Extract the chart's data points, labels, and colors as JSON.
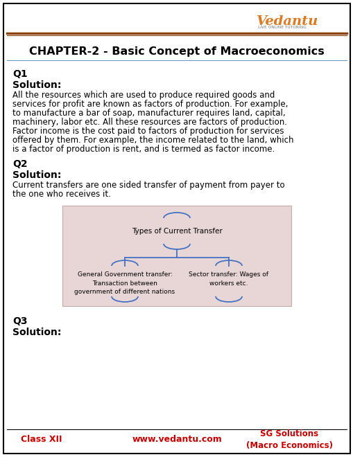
{
  "title": "CHAPTER-2 - Basic Concept of Macroeconomics",
  "vedantu_color": "#E07820",
  "page_bg": "#FFFFFF",
  "footer_left": "Class XII",
  "footer_center": "www.vedantu.com",
  "footer_right": "SG Solutions\n(Macro Economics)",
  "footer_color": "#CC0000",
  "q1_label": "Q1",
  "q1_solution": "Solution:",
  "q1_text": "All the resources which are used to produce required goods and\nservices for profit are known as factors of production. For example,\nto manufacture a bar of soap, manufacturer requires land, capital,\nmachinery, labor etc. All these resources are factors of production.\nFactor income is the cost paid to factors of production for services\noffered by them. For example, the income related to the land, which\nis a factor of production is rent, and is termed as factor income.",
  "q2_label": "Q2",
  "q2_solution": "Solution:",
  "q2_text": "Current transfers are one sided transfer of payment from payer to\nthe one who receives it.",
  "diagram_bg": "#E8D5D5",
  "diagram_title": "Types of Current Transfer",
  "diagram_left_text": "General Government transfer:\nTransaction between\ngovernment of different nations",
  "diagram_right_text": "Sector transfer: Wages of\nworkers etc.",
  "q3_label": "Q3",
  "q3_solution": "Solution:",
  "body_bg": "#F5D9C0",
  "arc_color": "#4472C4",
  "line_color_h1": "#8B4513",
  "line_color_h2": "#6B3410",
  "line_color_title": "#6699CC"
}
